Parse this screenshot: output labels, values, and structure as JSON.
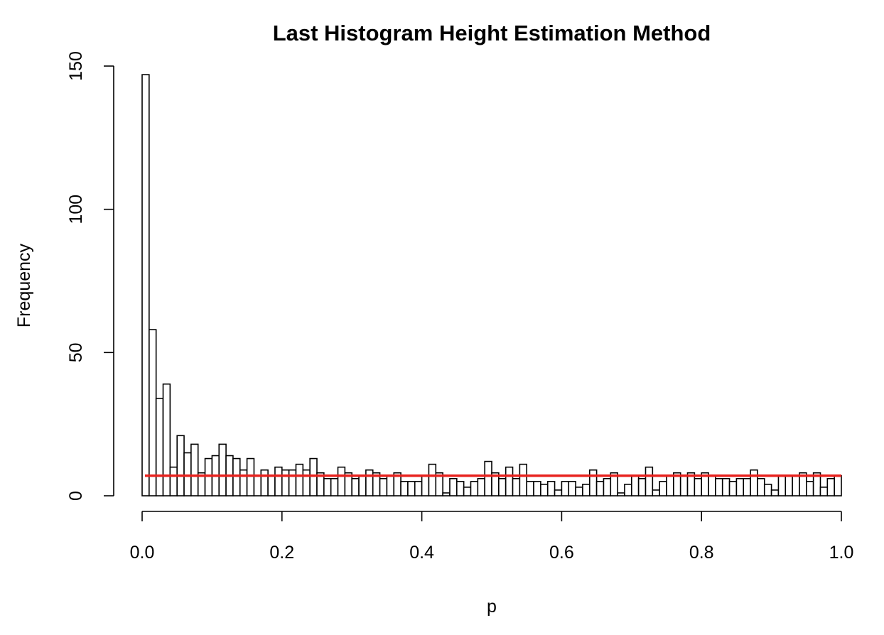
{
  "chart_data": {
    "type": "bar",
    "title": "Last Histogram Height Estimation Method",
    "xlabel": "p",
    "ylabel": "Frequency",
    "xlim": [
      0,
      1
    ],
    "ylim": [
      0,
      150
    ],
    "x_ticks": [
      "0.0",
      "0.2",
      "0.4",
      "0.6",
      "0.8",
      "1.0"
    ],
    "y_ticks": [
      "0",
      "50",
      "100",
      "150"
    ],
    "bin_width": 0.01,
    "bin_start": 0.0,
    "values": [
      147,
      58,
      34,
      39,
      10,
      21,
      15,
      18,
      8,
      13,
      14,
      18,
      14,
      13,
      9,
      13,
      7,
      9,
      7,
      10,
      9,
      9,
      11,
      9,
      13,
      8,
      6,
      6,
      10,
      8,
      6,
      7,
      9,
      8,
      6,
      7,
      8,
      5,
      5,
      5,
      7,
      11,
      8,
      1,
      6,
      5,
      3,
      5,
      6,
      12,
      8,
      6,
      10,
      6,
      11,
      5,
      5,
      4,
      5,
      2,
      5,
      5,
      3,
      4,
      9,
      5,
      6,
      8,
      1,
      4,
      7,
      6,
      10,
      2,
      5,
      7,
      8,
      7,
      8,
      6,
      8,
      7,
      6,
      6,
      5,
      6,
      6,
      9,
      6,
      4,
      2,
      7,
      7,
      7,
      8,
      5,
      8,
      3,
      6,
      7
    ],
    "reference_line": {
      "y": 7,
      "color": "#e8211d"
    },
    "bar_fill": "#ffffff",
    "bar_stroke": "#000000",
    "grid": false,
    "legend": "none"
  }
}
